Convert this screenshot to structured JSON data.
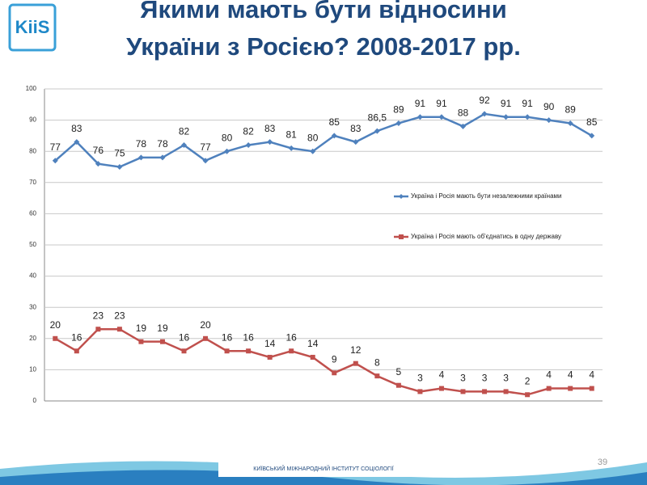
{
  "slide": {
    "logo": "KiiS",
    "footer": "КИЇВСЬКИЙ МІЖНАРОДНИЙ ІНСТИТУТ СОЦІОЛОГІЇ",
    "page_number": "39"
  },
  "chart_data": {
    "type": "line",
    "title": [
      "Якими мають бути відносини",
      "України з Росією? 2008-2017 рр."
    ],
    "series": [
      {
        "name": "Україна і Росія мають бути незалежними країнами",
        "color": "#4f81bd",
        "values": [
          77,
          83,
          76,
          75,
          78,
          78,
          82,
          77,
          80,
          82,
          83,
          81,
          80,
          85,
          83,
          86.5,
          89,
          91,
          91,
          88,
          92,
          91,
          91,
          90,
          89,
          85
        ],
        "value_labels": [
          "77",
          "83",
          "76",
          "75",
          "78",
          "78",
          "82",
          "77",
          "80",
          "82",
          "83",
          "81",
          "80",
          "85",
          "83",
          "86,5",
          "89",
          "91",
          "91",
          "88",
          "92",
          "91",
          "91",
          "90",
          "89",
          "85"
        ]
      },
      {
        "name": "Україна і Росія мають об'єднатись в одну державу",
        "color": "#c0504d",
        "values": [
          20,
          16,
          23,
          23,
          19,
          19,
          16,
          20,
          16,
          16,
          14,
          16,
          14,
          9,
          12,
          8,
          5,
          3,
          4,
          3,
          3,
          3,
          2,
          4,
          4,
          4
        ]
      }
    ],
    "ylim": [
      0,
      100
    ],
    "yticks": [
      0,
      10,
      20,
      30,
      40,
      50,
      60,
      70,
      80,
      90,
      100
    ],
    "grid": true,
    "legend": "right"
  }
}
